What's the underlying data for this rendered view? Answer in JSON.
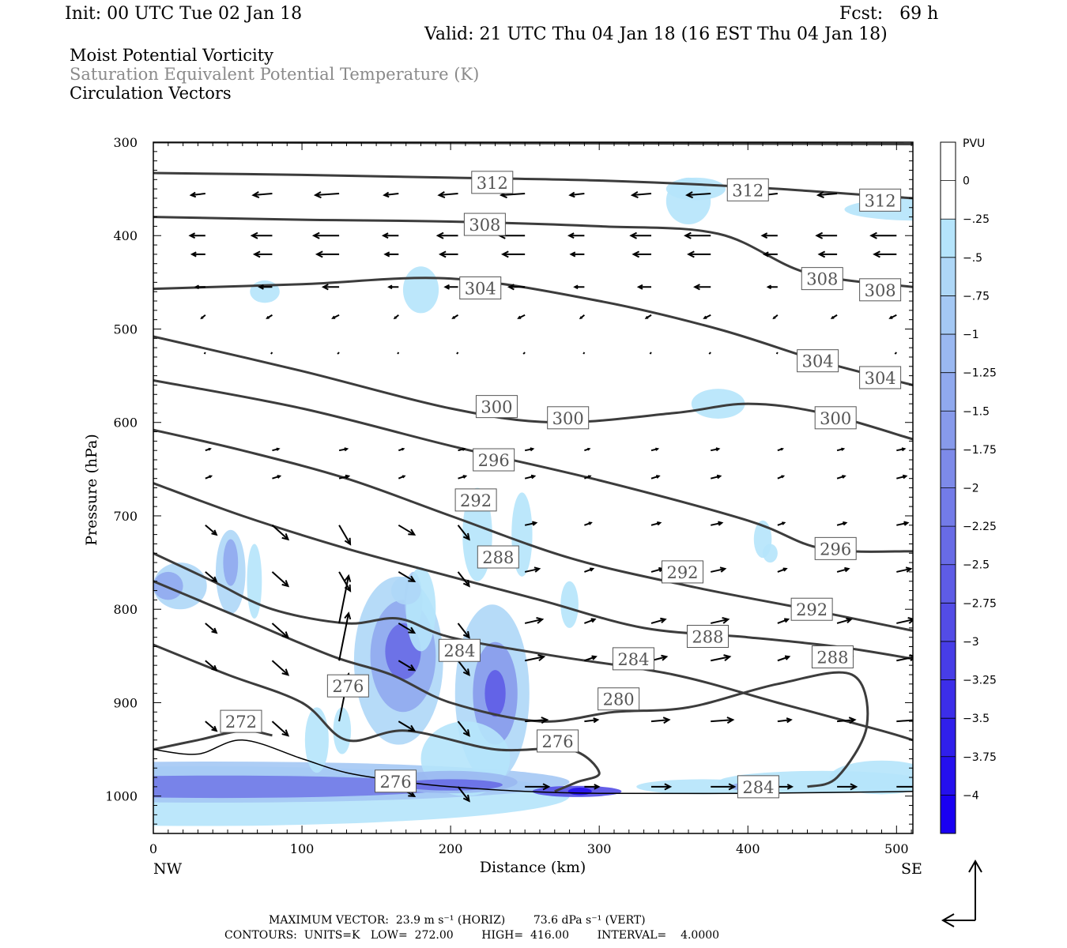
{
  "header": {
    "init": "Init: 00 UTC Tue 02 Jan 18",
    "fcst": "Fcst:   69 h",
    "valid": "Valid: 21 UTC Thu 04 Jan 18 (16 EST Thu 04 Jan 18)"
  },
  "titles": {
    "line1": "Moist Potential Vorticity",
    "line2": "Saturation Equivalent Potential Temperature (K)",
    "line3": "Circulation Vectors"
  },
  "axes": {
    "ylabel": "Pressure (hPa)",
    "xlabel": "Distance (km)",
    "left_end": "NW",
    "right_end": "SE",
    "yticks": [
      "300",
      "400",
      "500",
      "600",
      "700",
      "800",
      "900",
      "1000"
    ],
    "xticks": [
      "0",
      "100",
      "200",
      "300",
      "400",
      "500"
    ]
  },
  "colorbar": {
    "unit": "PVU",
    "labels": [
      "0",
      "-.25",
      "-.5",
      "-.75",
      "-1",
      "-1.25",
      "-1.5",
      "-1.75",
      "-2",
      "-2.25",
      "-2.5",
      "-2.75",
      "-3",
      "-3.25",
      "-3.5",
      "-3.75",
      "-4"
    ],
    "colors": [
      "#ffffff",
      "#ffffff",
      "#b5e4fb",
      "#aed7f7",
      "#a4c8f4",
      "#9ab8f1",
      "#90a9ee",
      "#879aeb",
      "#7d8ae9",
      "#737be8",
      "#686be6",
      "#5e5ce6",
      "#534ce6",
      "#473de7",
      "#3c2ee9",
      "#301feb",
      "#2510ee",
      "#1a00f2"
    ]
  },
  "footer": {
    "max_vector": "MAXIMUM VECTOR:  23.9 m s⁻¹ (HORIZ)        73.6 dPa s⁻¹ (VERT)",
    "contours": "CONTOURS:  UNITS=K   LOW=  272.00        HIGH=  416.00        INTERVAL=    4.0000"
  },
  "chart_data": {
    "type": "cross-section",
    "x_range_km": [
      0,
      511
    ],
    "y_range_hPa": [
      300,
      1040
    ],
    "y_log_scale": false,
    "theta_es_contours": [
      {
        "value": 312,
        "label": "312",
        "x": [
          0,
          100,
          200,
          300,
          400,
          511
        ],
        "p": [
          333,
          335,
          338,
          341,
          348,
          360
        ],
        "labels_at": [
          [
            228,
            343
          ],
          [
            400,
            351
          ],
          [
            489,
            362
          ]
        ]
      },
      {
        "value": 308,
        "label": "308",
        "x": [
          0,
          100,
          200,
          300,
          380,
          440,
          511
        ],
        "p": [
          380,
          383,
          385,
          390,
          398,
          440,
          455
        ],
        "labels_at": [
          [
            223,
            388
          ],
          [
            450,
            446
          ],
          [
            489,
            458
          ]
        ]
      },
      {
        "value": 304,
        "label": "304",
        "x": [
          0,
          100,
          200,
          300,
          380,
          450,
          511
        ],
        "p": [
          457,
          452,
          446,
          470,
          500,
          535,
          560
        ],
        "labels_at": [
          [
            220,
            456
          ],
          [
            447,
            534
          ],
          [
            489,
            552
          ]
        ]
      },
      {
        "value": 300,
        "label": "300",
        "x": [
          0,
          100,
          200,
          270,
          350,
          400,
          450,
          511
        ],
        "p": [
          508,
          545,
          585,
          600,
          590,
          580,
          590,
          618
        ],
        "labels_at": [
          [
            231,
            583
          ],
          [
            279,
            595
          ],
          [
            459,
            595
          ]
        ]
      },
      {
        "value": 296,
        "label": "296",
        "x": [
          0,
          100,
          200,
          300,
          400,
          450,
          511
        ],
        "p": [
          555,
          585,
          625,
          662,
          705,
          735,
          738
        ],
        "labels_at": [
          [
            229,
            640
          ],
          [
            459,
            735
          ]
        ]
      },
      {
        "value": 292,
        "label": "292",
        "x": [
          0,
          60,
          130,
          200,
          280,
          360,
          440,
          511
        ],
        "p": [
          608,
          630,
          660,
          700,
          745,
          775,
          800,
          823
        ],
        "labels_at": [
          [
            217,
            683
          ],
          [
            356,
            760
          ],
          [
            443,
            800
          ]
        ]
      },
      {
        "value": 288,
        "label": "288",
        "x": [
          0,
          60,
          130,
          200,
          260,
          330,
          400,
          460,
          511
        ],
        "p": [
          665,
          700,
          735,
          765,
          790,
          820,
          830,
          840,
          853
        ],
        "labels_at": [
          [
            232,
            744
          ],
          [
            373,
            829
          ],
          [
            457,
            851
          ]
        ]
      },
      {
        "value": 284,
        "label": "284",
        "x": [
          0,
          40,
          80,
          130,
          165,
          200,
          270,
          350,
          420,
          490,
          511
        ],
        "p": [
          740,
          770,
          800,
          815,
          810,
          830,
          850,
          870,
          900,
          930,
          940
        ],
        "labels_at": [
          [
            206,
            844
          ],
          [
            323,
            853
          ],
          [
            407,
            990
          ]
        ]
      },
      {
        "value": 280,
        "label": "280",
        "x": [
          0,
          60,
          120,
          160,
          200,
          260,
          310,
          360,
          420,
          470,
          480,
          460,
          440
        ],
        "p": [
          770,
          810,
          850,
          870,
          900,
          920,
          910,
          905,
          880,
          870,
          925,
          980,
          990
        ],
        "labels_at": [
          [
            313,
            896
          ]
        ]
      },
      {
        "value": 276,
        "label": "276",
        "x": [
          0,
          50,
          100,
          130,
          170,
          230,
          280,
          300,
          285,
          270
        ],
        "p": [
          838,
          870,
          900,
          940,
          930,
          950,
          950,
          975,
          985,
          995
        ],
        "labels_at": [
          [
            131,
            882
          ],
          [
            163,
            984
          ],
          [
            272,
            941
          ]
        ]
      },
      {
        "value": 272,
        "label": "272",
        "x": [
          0,
          30,
          60,
          80
        ],
        "p": [
          950,
          940,
          930,
          935
        ],
        "labels_at": [
          [
            59,
            920
          ]
        ]
      }
    ],
    "surface_line": {
      "x": [
        0,
        30,
        60,
        100,
        130,
        170,
        200,
        250,
        300,
        400,
        511
      ],
      "p": [
        950,
        955,
        940,
        960,
        975,
        985,
        990,
        995,
        997,
        997,
        995
      ]
    },
    "vectors_note": "Circulation vectors plotted on regular grid; upper levels westward, lower levels eastward with strong ascent near x=125-145 km",
    "pv_note": "Negative moist PV shaded in blues; strongest near surface (~980-1000 hPa) and in columns near x=50, 165, 230 km"
  }
}
